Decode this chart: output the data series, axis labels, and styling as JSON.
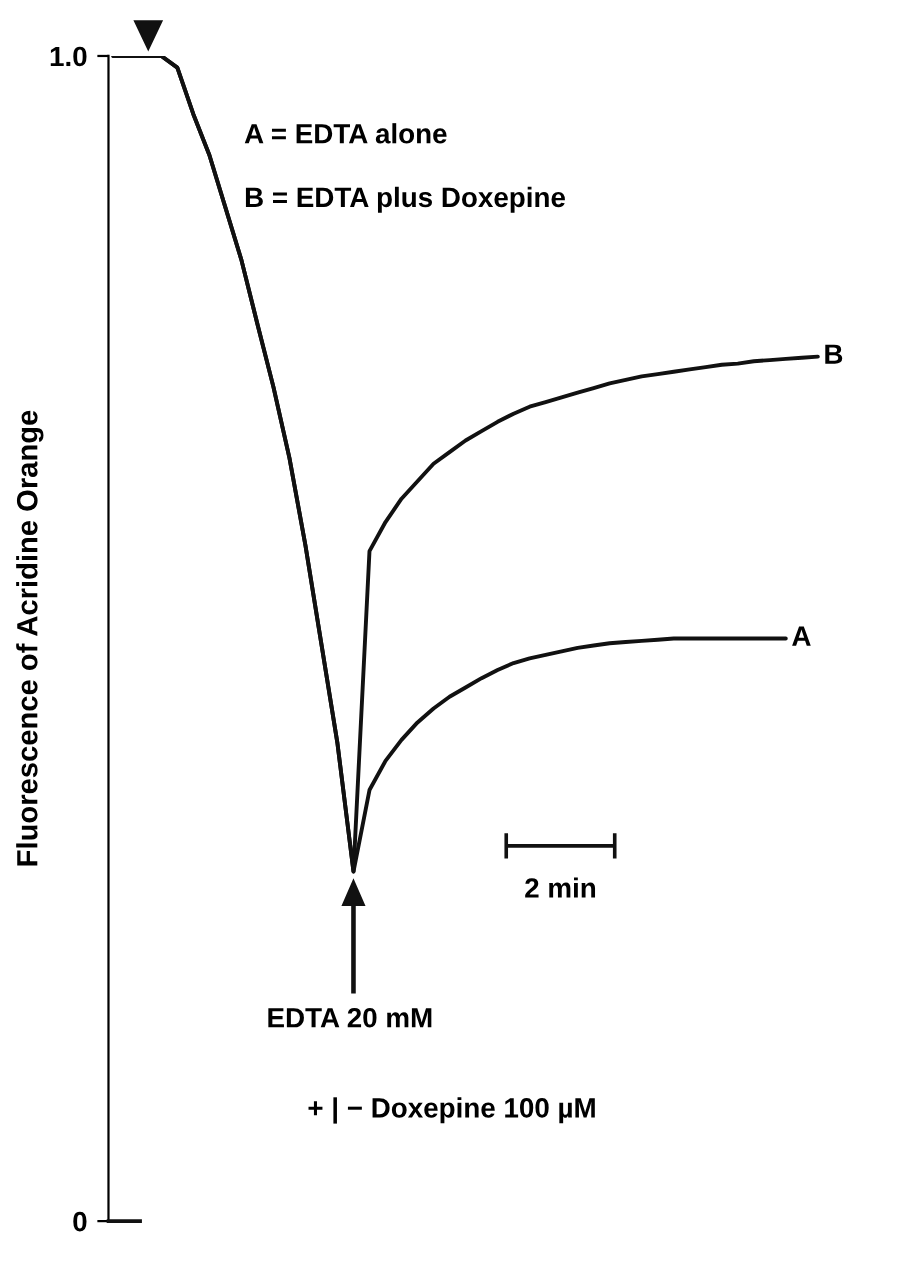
{
  "chart_data": {
    "type": "line",
    "ylabel": "Fluorescence of Acridine Orange",
    "categories": [
      null,
      null,
      null,
      null,
      null,
      null,
      null,
      null,
      null,
      null,
      null,
      null,
      null,
      null,
      null,
      null,
      null,
      null,
      null,
      null,
      null,
      null,
      null,
      null,
      null,
      null,
      null,
      null,
      null,
      null,
      null,
      null,
      null,
      null,
      null,
      null,
      null,
      null,
      null,
      null,
      null,
      null,
      null,
      null,
      null
    ],
    "series": [
      {
        "name": "B",
        "color": "#111111",
        "values": [
          1.0,
          1.0,
          1.0,
          1.0,
          0.99,
          0.95,
          0.915,
          0.87,
          0.825,
          0.77,
          0.716,
          0.655,
          0.58,
          0.495,
          0.41,
          0.3,
          0.575,
          0.6,
          0.62,
          0.635,
          0.65,
          0.66,
          0.67,
          0.678,
          0.686,
          0.693,
          0.699,
          0.703,
          0.707,
          0.711,
          0.715,
          0.719,
          0.722,
          0.725,
          0.727,
          0.729,
          0.731,
          0.733,
          0.735,
          0.736,
          0.738,
          0.739,
          0.74,
          0.741,
          0.742
        ]
      },
      {
        "name": "A",
        "color": "#111111",
        "values": [
          1.0,
          1.0,
          1.0,
          1.0,
          0.99,
          0.95,
          0.915,
          0.87,
          0.825,
          0.77,
          0.716,
          0.655,
          0.58,
          0.495,
          0.41,
          0.3,
          0.37,
          0.395,
          0.413,
          0.428,
          0.44,
          0.45,
          0.458,
          0.466,
          0.473,
          0.479,
          0.483,
          0.486,
          0.489,
          0.492,
          0.494,
          0.496,
          0.497,
          0.498,
          0.499,
          0.5,
          0.5,
          0.5,
          0.5,
          0.5,
          0.5,
          0.5,
          0.5,
          null,
          null
        ]
      }
    ],
    "ylim": [
      0,
      1.0
    ],
    "yticks": [
      0,
      {
        "value": 1.0,
        "label": "1.0"
      }
    ],
    "tick_labels": "y",
    "grid": false,
    "legend": false,
    "marker": "none",
    "line_style": "solid",
    "annotations": [
      "A = EDTA alone",
      "B = EDTA plus Doxepine",
      "EDTA 20 mM",
      "+ | − Doxepine 100 µM",
      "2 min"
    ]
  }
}
